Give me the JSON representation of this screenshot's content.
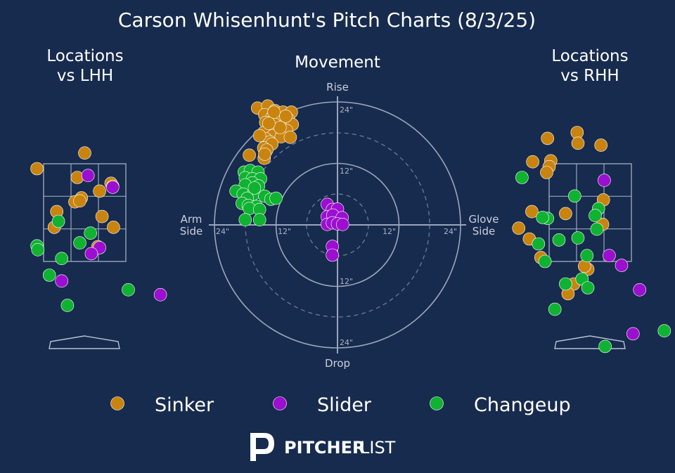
{
  "title": "Carson Whisenhunt's Pitch Charts (8/3/25)",
  "colors": {
    "background": "#172b4e",
    "sinker": "#c98410",
    "slider": "#9c0fd0",
    "changeup": "#10b232",
    "grid": "#9aa6bb",
    "text": "#ffffff",
    "muted": "#c9d0dd"
  },
  "panels": {
    "lhh_title_line1": "Locations",
    "lhh_title_line2": "vs LHH",
    "movement_title": "Movement",
    "rhh_title_line1": "Locations",
    "rhh_title_line2": "vs RHH"
  },
  "movement_axes": {
    "top": "Rise",
    "bottom": "Drop",
    "left_line1": "Arm",
    "left_line2": "Side",
    "right_line1": "Glove",
    "right_line2": "Side",
    "tick_labels": {
      "top_24": "24\"",
      "top_12": "12\"",
      "bottom_12": "12\"",
      "bottom_24": "24\"",
      "left_24": "24\"",
      "left_12": "12\"",
      "right_12": "12\"",
      "right_24": "24\""
    }
  },
  "legend": [
    {
      "label": "Sinker",
      "color": "#c98410"
    },
    {
      "label": "Slider",
      "color": "#9c0fd0"
    },
    {
      "label": "Changeup",
      "color": "#10b232"
    }
  ],
  "brand": {
    "part1": "PITCHER",
    "part2": "LIST"
  },
  "chart_data": [
    {
      "type": "scatter",
      "panel": "Locations vs LHH",
      "units": "strike-zone box coordinates (0-1 inside zone, x left→right, y bottom→top)",
      "series": [
        {
          "name": "Sinker",
          "points": [
            [
              -0.08,
              0.95
            ],
            [
              0.5,
              1.11
            ],
            [
              0.41,
              0.86
            ],
            [
              0.82,
              0.8
            ],
            [
              0.84,
              0.77
            ],
            [
              0.46,
              0.65
            ],
            [
              0.68,
              0.72
            ],
            [
              0.38,
              0.61
            ],
            [
              0.44,
              0.62
            ],
            [
              0.16,
              0.51
            ],
            [
              0.71,
              0.46
            ],
            [
              0.13,
              0.35
            ],
            [
              0.85,
              0.35
            ],
            [
              0.66,
              0.15
            ]
          ]
        },
        {
          "name": "Slider",
          "points": [
            [
              0.54,
              0.88
            ],
            [
              0.84,
              0.76
            ],
            [
              0.68,
              0.14
            ],
            [
              0.58,
              0.08
            ],
            [
              0.22,
              -0.2
            ],
            [
              1.42,
              -0.34
            ]
          ]
        },
        {
          "name": "Changeup",
          "points": [
            [
              0.18,
              0.41
            ],
            [
              0.57,
              0.29
            ],
            [
              -0.08,
              0.16
            ],
            [
              -0.07,
              0.12
            ],
            [
              0.44,
              0.19
            ],
            [
              0.22,
              0.03
            ],
            [
              0.07,
              -0.14
            ],
            [
              1.03,
              -0.29
            ],
            [
              0.29,
              -0.45
            ]
          ]
        }
      ]
    },
    {
      "type": "scatter",
      "panel": "Movement",
      "units": "inches of movement (x: arm side negative, glove side positive; y: rise positive)",
      "series": [
        {
          "name": "Sinker",
          "points": [
            [
              -15.6,
              22.8
            ],
            [
              -13.6,
              23.2
            ],
            [
              -12.2,
              22.3
            ],
            [
              -10.6,
              22.0
            ],
            [
              -9.0,
              22.0
            ],
            [
              -14.2,
              21.5
            ],
            [
              -12.8,
              21.0
            ],
            [
              -11.4,
              20.6
            ],
            [
              -9.6,
              20.6
            ],
            [
              -14.0,
              20.0
            ],
            [
              -12.2,
              19.6
            ],
            [
              -10.4,
              19.4
            ],
            [
              -8.8,
              19.6
            ],
            [
              -13.2,
              18.8
            ],
            [
              -11.6,
              18.6
            ],
            [
              -9.9,
              18.4
            ],
            [
              -14.4,
              18.0
            ],
            [
              -12.6,
              17.4
            ],
            [
              -11.0,
              17.2
            ],
            [
              -9.2,
              17.1
            ],
            [
              -14.0,
              16.8
            ],
            [
              -13.2,
              16.2
            ],
            [
              -12.8,
              15.8
            ],
            [
              -14.4,
              15.0
            ],
            [
              -17.2,
              13.6
            ],
            [
              -14.3,
              13.0
            ],
            [
              -12.4,
              22.0
            ],
            [
              -11.2,
              19.0
            ],
            [
              -10.1,
              21.2
            ],
            [
              -13.8,
              14.6
            ],
            [
              -14.2,
              13.8
            ],
            [
              -15.2,
              17.4
            ],
            [
              -13.4,
              19.8
            ]
          ]
        },
        {
          "name": "Slider",
          "points": [
            [
              -2.0,
              4.0
            ],
            [
              -1.0,
              3.0
            ],
            [
              0.0,
              3.1
            ],
            [
              -2.0,
              1.6
            ],
            [
              -0.9,
              1.9
            ],
            [
              0.9,
              1.4
            ],
            [
              -2.0,
              0.1
            ],
            [
              -1.0,
              0.4
            ],
            [
              0.0,
              0.2
            ],
            [
              1.0,
              0.1
            ],
            [
              -1.0,
              -4.2
            ],
            [
              -1.0,
              -5.9
            ]
          ]
        },
        {
          "name": "Changeup",
          "points": [
            [
              -18.2,
              10.3
            ],
            [
              -17.0,
              10.6
            ],
            [
              -15.5,
              10.3
            ],
            [
              -18.0,
              9.2
            ],
            [
              -16.6,
              9.0
            ],
            [
              -15.0,
              9.0
            ],
            [
              -16.6,
              8.2
            ],
            [
              -18.0,
              7.8
            ],
            [
              -15.4,
              7.6
            ],
            [
              -19.8,
              6.6
            ],
            [
              -18.4,
              6.0
            ],
            [
              -16.4,
              6.0
            ],
            [
              -14.2,
              5.6
            ],
            [
              -17.6,
              5.2
            ],
            [
              -13.0,
              5.0
            ],
            [
              -18.6,
              4.2
            ],
            [
              -17.4,
              3.8
            ],
            [
              -15.8,
              3.6
            ],
            [
              -17.2,
              3.2
            ],
            [
              -15.2,
              3.0
            ],
            [
              -18.0,
              1.0
            ],
            [
              -15.2,
              1.0
            ],
            [
              -12.0,
              5.2
            ],
            [
              -16.2,
              7.2
            ]
          ]
        }
      ]
    },
    {
      "type": "scatter",
      "panel": "Locations vs RHH",
      "units": "strike-zone box coordinates (0-1 inside zone, x left→right, y bottom→top)",
      "series": [
        {
          "name": "Sinker",
          "points": [
            [
              -0.02,
              1.26
            ],
            [
              0.34,
              1.32
            ],
            [
              0.35,
              1.21
            ],
            [
              0.63,
              1.19
            ],
            [
              -0.2,
              1.02
            ],
            [
              0.02,
              1.03
            ],
            [
              0.0,
              0.97
            ],
            [
              -0.03,
              0.91
            ],
            [
              0.66,
              0.63
            ],
            [
              -0.21,
              0.51
            ],
            [
              0.2,
              0.49
            ],
            [
              -0.37,
              0.34
            ],
            [
              -0.24,
              0.23
            ],
            [
              -0.1,
              0.04
            ],
            [
              0.47,
              -0.08
            ],
            [
              0.43,
              -0.05
            ],
            [
              0.65,
              0.38
            ],
            [
              0.3,
              -0.23
            ],
            [
              0.23,
              -0.33
            ]
          ]
        },
        {
          "name": "Slider",
          "points": [
            [
              0.67,
              0.83
            ],
            [
              0.73,
              0.06
            ],
            [
              0.88,
              -0.04
            ],
            [
              1.1,
              -0.29
            ],
            [
              1.02,
              -0.74
            ]
          ]
        },
        {
          "name": "Changeup",
          "points": [
            [
              -0.33,
              0.86
            ],
            [
              0.31,
              0.67
            ],
            [
              0.6,
              0.54
            ],
            [
              -0.02,
              0.44
            ],
            [
              -0.08,
              0.45
            ],
            [
              0.56,
              0.47
            ],
            [
              0.58,
              0.33
            ],
            [
              0.35,
              0.24
            ],
            [
              0.12,
              0.22
            ],
            [
              -0.13,
              0.18
            ],
            [
              0.46,
              0.06
            ],
            [
              -0.05,
              0.0
            ],
            [
              0.4,
              -0.18
            ],
            [
              0.2,
              -0.23
            ],
            [
              0.47,
              -0.27
            ],
            [
              0.07,
              -0.49
            ],
            [
              0.68,
              -0.87
            ],
            [
              1.4,
              -0.71
            ]
          ]
        }
      ]
    }
  ]
}
